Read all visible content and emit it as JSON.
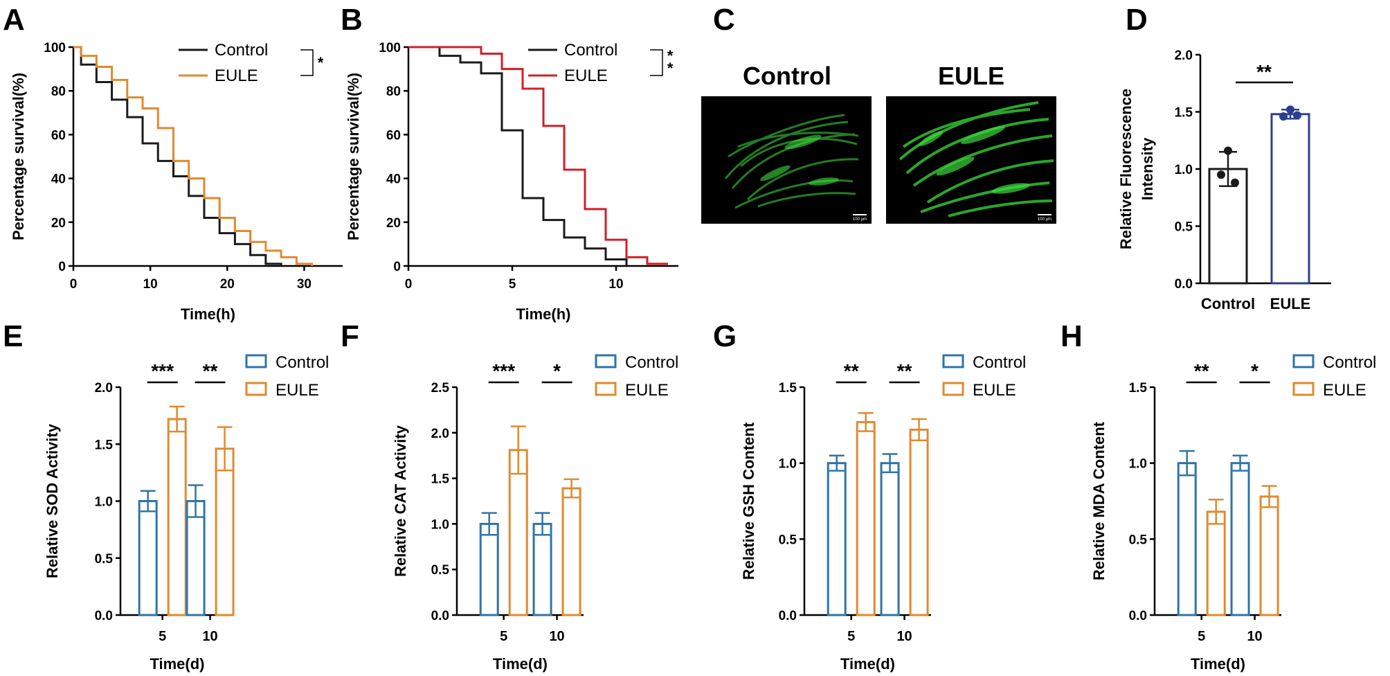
{
  "panel_labels": [
    "A",
    "B",
    "C",
    "D",
    "E",
    "F",
    "G",
    "H"
  ],
  "colors": {
    "control": "#1a1a1a",
    "eule_orange": "#E08A2E",
    "eule_red": "#D11F26",
    "control_blue": "#2E74A6",
    "eule_navy": "#2B3F8C",
    "micrograph_bg": "#000000",
    "fluorescence": "#3ED93E"
  },
  "panel_c": {
    "titles": [
      "Control",
      "EULE"
    ],
    "scale_bar_label": "100 μm"
  },
  "chart_data": [
    {
      "panel": "A",
      "type": "line",
      "xlabel": "Time(h)",
      "ylabel": "Percentage survival(%)",
      "xlim": [
        0,
        35
      ],
      "ylim": [
        0,
        100
      ],
      "xticks": [
        0,
        10,
        20,
        30
      ],
      "yticks": [
        0,
        20,
        40,
        60,
        80,
        100
      ],
      "legend_position": "top-right",
      "significance": "*",
      "series": [
        {
          "name": "Control",
          "color": "#1a1a1a",
          "x": [
            0,
            1,
            3,
            5,
            7,
            9,
            11,
            13,
            15,
            17,
            19,
            21,
            23,
            25,
            27
          ],
          "y": [
            100,
            92,
            84,
            76,
            68,
            56,
            48,
            41,
            32,
            22,
            15,
            10,
            5,
            1,
            0
          ]
        },
        {
          "name": "EULE",
          "color": "#E08A2E",
          "x": [
            0,
            1,
            3,
            5,
            7,
            9,
            11,
            13,
            15,
            17,
            19,
            21,
            23,
            25,
            27,
            29,
            31
          ],
          "y": [
            100,
            96,
            91,
            85,
            77,
            72,
            63,
            48,
            40,
            31,
            22,
            16,
            11,
            7,
            4,
            1,
            0
          ]
        }
      ]
    },
    {
      "panel": "B",
      "type": "line",
      "xlabel": "Time(h)",
      "ylabel": "Percentage survival(%)",
      "xlim": [
        0,
        13
      ],
      "ylim": [
        0,
        100
      ],
      "xticks": [
        0,
        5,
        10
      ],
      "yticks": [
        0,
        20,
        40,
        60,
        80,
        100
      ],
      "legend_position": "top-right",
      "significance": "**",
      "series": [
        {
          "name": "Control",
          "color": "#1a1a1a",
          "x": [
            0,
            1.5,
            2.5,
            3.5,
            4.5,
            5.5,
            6.5,
            7.5,
            8.5,
            9.5,
            10.5
          ],
          "y": [
            100,
            96,
            93,
            88,
            62,
            31,
            21,
            13,
            8,
            3,
            0
          ]
        },
        {
          "name": "EULE",
          "color": "#D11F26",
          "x": [
            0,
            3.5,
            4.5,
            5.5,
            6.5,
            7.5,
            8.5,
            9.5,
            10.5,
            11.5,
            12.5
          ],
          "y": [
            100,
            97,
            90,
            81,
            64,
            44,
            26,
            12,
            4,
            1,
            1
          ]
        }
      ]
    },
    {
      "panel": "D",
      "type": "bar",
      "xlabel": "",
      "ylabel": "Relative Fluorescence Intensity",
      "ylim": [
        0,
        2.0
      ],
      "yticks": [
        "0.0",
        "0.5",
        "1.0",
        "1.5",
        "2.0"
      ],
      "categories": [
        "Control",
        "EULE"
      ],
      "values": [
        1.0,
        1.48
      ],
      "errors": [
        0.15,
        0.04
      ],
      "points": [
        [
          1.16,
          0.95,
          0.88
        ],
        [
          1.52,
          1.46,
          1.47
        ]
      ],
      "significance": "**"
    },
    {
      "panel": "E",
      "type": "bar",
      "xlabel": "Time(d)",
      "ylabel": "Relative SOD Activity",
      "ylim": [
        0,
        2.0
      ],
      "yticks": [
        "0.0",
        "0.5",
        "1.0",
        "1.5",
        "2.0"
      ],
      "categories": [
        "5",
        "10"
      ],
      "series": [
        {
          "name": "Control",
          "values": [
            1.0,
            1.0
          ],
          "errors": [
            0.09,
            0.14
          ]
        },
        {
          "name": "EULE",
          "values": [
            1.72,
            1.46
          ],
          "errors": [
            0.11,
            0.19
          ]
        }
      ],
      "significance": [
        "***",
        "**"
      ],
      "legend_position": "top-right"
    },
    {
      "panel": "F",
      "type": "bar",
      "xlabel": "Time(d)",
      "ylabel": "Relative CAT Activity",
      "ylim": [
        0,
        2.5
      ],
      "yticks": [
        "0.0",
        "0.5",
        "1.0",
        "1.5",
        "2.0",
        "2.5"
      ],
      "categories": [
        "5",
        "10"
      ],
      "series": [
        {
          "name": "Control",
          "values": [
            1.0,
            1.0
          ],
          "errors": [
            0.12,
            0.12
          ]
        },
        {
          "name": "EULE",
          "values": [
            1.81,
            1.39
          ],
          "errors": [
            0.26,
            0.1
          ]
        }
      ],
      "significance": [
        "***",
        "*"
      ],
      "legend_position": "top-right"
    },
    {
      "panel": "G",
      "type": "bar",
      "xlabel": "Time(d)",
      "ylabel": "Relative GSH Content",
      "ylim": [
        0,
        1.5
      ],
      "yticks": [
        "0.0",
        "0.5",
        "1.0",
        "1.5"
      ],
      "categories": [
        "5",
        "10"
      ],
      "series": [
        {
          "name": "Control",
          "values": [
            1.0,
            1.0
          ],
          "errors": [
            0.05,
            0.06
          ]
        },
        {
          "name": "EULE",
          "values": [
            1.27,
            1.22
          ],
          "errors": [
            0.06,
            0.07
          ]
        }
      ],
      "significance": [
        "**",
        "**"
      ],
      "legend_position": "top-right"
    },
    {
      "panel": "H",
      "type": "bar",
      "xlabel": "Time(d)",
      "ylabel": "Relative MDA Content",
      "ylim": [
        0,
        1.5
      ],
      "yticks": [
        "0.0",
        "0.5",
        "1.0",
        "1.5"
      ],
      "categories": [
        "5",
        "10"
      ],
      "series": [
        {
          "name": "Control",
          "values": [
            1.0,
            1.0
          ],
          "errors": [
            0.08,
            0.05
          ]
        },
        {
          "name": "EULE",
          "values": [
            0.68,
            0.78
          ],
          "errors": [
            0.08,
            0.07
          ]
        }
      ],
      "significance": [
        "**",
        "*"
      ],
      "legend_position": "top-right"
    }
  ]
}
